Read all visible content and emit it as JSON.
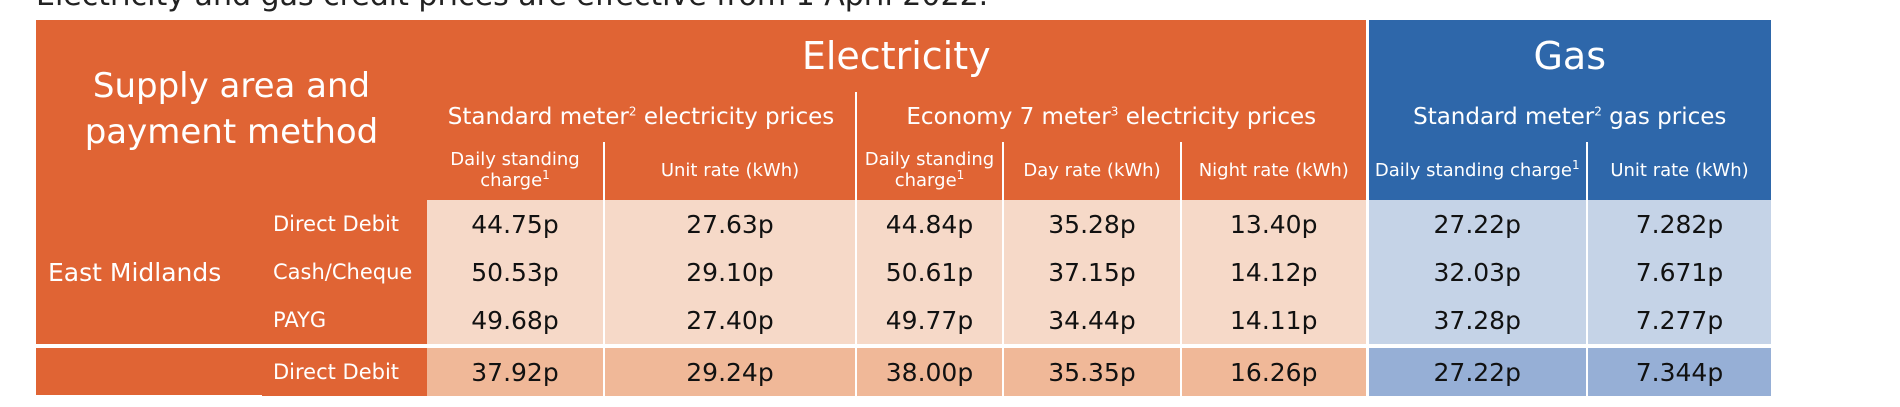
{
  "intro_text": "Electricity and gas credit prices are effective from 1 April 2022.",
  "header": {
    "supply_line1": "Supply area and",
    "supply_line2": "payment method",
    "electricity": "Electricity",
    "gas": "Gas",
    "std_elec_prefix": "Standard meter",
    "std_elec_sup": "2",
    "std_elec_suffix": " electricity prices",
    "e7_prefix": "Economy 7 meter",
    "e7_sup": "3",
    "e7_suffix": " electricity prices",
    "std_gas_prefix": "Standard meter",
    "std_gas_sup": "2",
    "std_gas_suffix": " gas prices",
    "col_dsc_line1": "Daily standing",
    "col_dsc_line2": "charge",
    "col_sup1": "1",
    "col_unit_rate": "Unit rate (kWh)",
    "col_day_rate": "Day rate (kWh)",
    "col_night_rate": "Night rate (kWh)",
    "col_gas_dsc": "Daily standing charge",
    "col_gas_unit": "Unit rate (kWh)"
  },
  "rows": [
    {
      "area": "East Midlands",
      "method": "Direct Debit",
      "values": [
        "44.75p",
        "27.63p",
        "44.84p",
        "35.28p",
        "13.40p",
        "27.22p",
        "7.282p"
      ]
    },
    {
      "area": "",
      "method": "Cash/Cheque",
      "values": [
        "50.53p",
        "29.10p",
        "50.61p",
        "37.15p",
        "14.12p",
        "32.03p",
        "7.671p"
      ]
    },
    {
      "area": "",
      "method": "PAYG",
      "values": [
        "49.68p",
        "27.40p",
        "49.77p",
        "34.44p",
        "14.11p",
        "37.28p",
        "7.277p"
      ]
    },
    {
      "area": "",
      "method": "Direct Debit",
      "values": [
        "37.92p",
        "29.24p",
        "38.00p",
        "35.35p",
        "16.26p",
        "27.22p",
        "7.344p"
      ]
    }
  ]
}
